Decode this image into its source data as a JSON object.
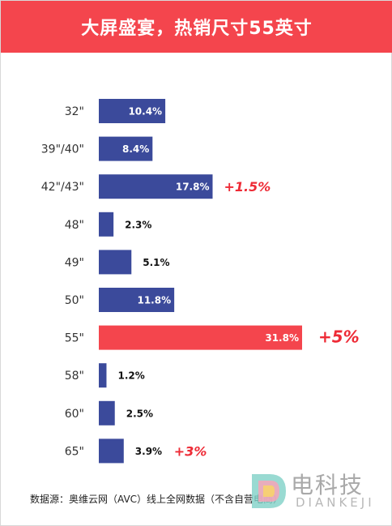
{
  "header": {
    "title": "大屏盛宴，热销尺寸55英寸"
  },
  "chart_data": {
    "type": "bar",
    "orientation": "horizontal",
    "title": "大屏盛宴，热销尺寸55英寸",
    "categories": [
      "32\"",
      "39\"/40\"",
      "42\"/43\"",
      "48\"",
      "49\"",
      "50\"",
      "55\"",
      "58\"",
      "60\"",
      "65\""
    ],
    "values": [
      10.4,
      8.4,
      17.8,
      2.3,
      5.1,
      11.8,
      31.8,
      1.2,
      2.5,
      3.9
    ],
    "value_labels": [
      "10.4%",
      "8.4%",
      "17.8%",
      "2.3%",
      "5.1%",
      "11.8%",
      "31.8%",
      "1.2%",
      "2.5%",
      "3.9%"
    ],
    "annotations": [
      {
        "category": "42\"/43\"",
        "text": "+1.5%"
      },
      {
        "category": "55\"",
        "text": "+5%"
      },
      {
        "category": "65\"",
        "text": "+3%"
      }
    ],
    "highlight_category": "55\"",
    "colors": {
      "bar": "#3b4a9b",
      "highlight": "#f4454d",
      "annotation": "#ee2b36",
      "label_inside": "#ffffff",
      "label_outside": "#111111"
    },
    "xlim": [
      0,
      31.8
    ],
    "grid": false,
    "legend": "none"
  },
  "footer": {
    "source": "数据源：奥维云网（AVC）线上全网数据（不含自营电商）"
  },
  "watermark": {
    "cn_text": "电科技",
    "en_text": "DIANKEJI"
  }
}
